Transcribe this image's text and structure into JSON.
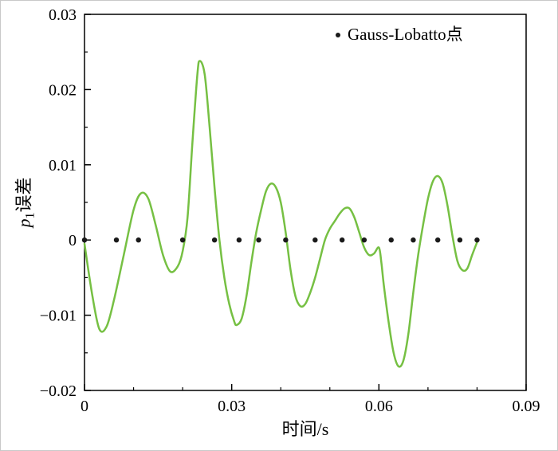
{
  "chart_data": {
    "type": "line",
    "title": "",
    "xlabel": "时间/s",
    "ylabel": "p1误差",
    "ylabel_parts": {
      "var": "p",
      "sub": "1",
      "text": "误差"
    },
    "xlim": [
      0,
      0.09
    ],
    "ylim": [
      -0.02,
      0.03
    ],
    "xticks": [
      0,
      0.03,
      0.06,
      0.09
    ],
    "xtick_labels": [
      "0",
      "0.03",
      "0.06",
      "0.09"
    ],
    "yticks": [
      -0.02,
      -0.01,
      0,
      0.01,
      0.02,
      0.03
    ],
    "ytick_labels": [
      "−0.02",
      "−0.01",
      "0",
      "0.01",
      "0.02",
      "0.03"
    ],
    "grid": false,
    "legend": {
      "position": "top-right",
      "marker": "dot",
      "marker_color": "#1a1a1a",
      "label": "Gauss-Lobatto点"
    },
    "series": [
      {
        "name": "p1误差曲线",
        "type": "line",
        "color": "#76c043",
        "width": 2.5,
        "x": [
          0,
          0.0015,
          0.003,
          0.0045,
          0.006,
          0.008,
          0.01,
          0.0115,
          0.013,
          0.0145,
          0.016,
          0.0175,
          0.019,
          0.02,
          0.021,
          0.022,
          0.023,
          0.0235,
          0.0245,
          0.0255,
          0.0265,
          0.0275,
          0.0285,
          0.0295,
          0.0305,
          0.031,
          0.032,
          0.033,
          0.034,
          0.035,
          0.036,
          0.037,
          0.038,
          0.039,
          0.04,
          0.041,
          0.042,
          0.043,
          0.044,
          0.045,
          0.046,
          0.047,
          0.048,
          0.049,
          0.05,
          0.051,
          0.052,
          0.053,
          0.054,
          0.055,
          0.056,
          0.057,
          0.058,
          0.059,
          0.06,
          0.0605,
          0.061,
          0.062,
          0.063,
          0.064,
          0.065,
          0.066,
          0.067,
          0.068,
          0.069,
          0.07,
          0.071,
          0.072,
          0.073,
          0.074,
          0.075,
          0.076,
          0.077,
          0.078,
          0.079,
          0.08
        ],
        "y": [
          -0.0005,
          -0.007,
          -0.0118,
          -0.0115,
          -0.008,
          -0.002,
          0.004,
          0.0062,
          0.0055,
          0.002,
          -0.002,
          -0.0042,
          -0.0035,
          -0.0015,
          0.003,
          0.013,
          0.022,
          0.0238,
          0.022,
          0.015,
          0.007,
          0.0,
          -0.005,
          -0.0085,
          -0.0108,
          -0.0113,
          -0.0105,
          -0.0075,
          -0.003,
          0.001,
          0.004,
          0.0065,
          0.0075,
          0.007,
          0.005,
          0.001,
          -0.004,
          -0.0075,
          -0.0088,
          -0.0085,
          -0.007,
          -0.005,
          -0.0025,
          0.0,
          0.0015,
          0.0025,
          0.0035,
          0.0042,
          0.0042,
          0.003,
          0.001,
          -0.001,
          -0.002,
          -0.0018,
          -0.001,
          -0.003,
          -0.006,
          -0.011,
          -0.015,
          -0.0168,
          -0.016,
          -0.0125,
          -0.007,
          -0.002,
          0.002,
          0.0055,
          0.0078,
          0.0085,
          0.0075,
          0.0045,
          0.0005,
          -0.0028,
          -0.004,
          -0.0038,
          -0.002,
          -0.0003
        ]
      },
      {
        "name": "Gauss-Lobatto点",
        "type": "scatter",
        "color": "#1a1a1a",
        "radius": 3.2,
        "x": [
          0,
          0.0065,
          0.011,
          0.02,
          0.0265,
          0.0315,
          0.0355,
          0.041,
          0.047,
          0.0525,
          0.057,
          0.0625,
          0.067,
          0.072,
          0.0765,
          0.08
        ],
        "y": [
          0,
          0,
          0,
          0,
          0,
          0,
          0,
          0,
          0,
          0,
          0,
          0,
          0,
          0,
          0,
          0
        ]
      }
    ]
  }
}
